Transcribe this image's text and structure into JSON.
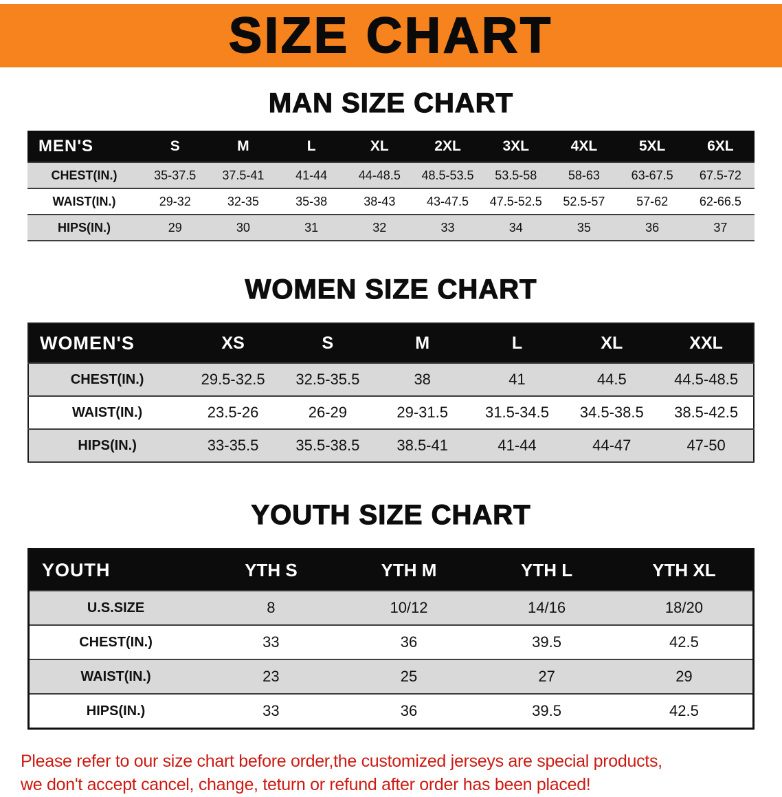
{
  "banner": {
    "title": "SIZE CHART"
  },
  "colors": {
    "banner_bg": "#F6831D",
    "table_header_bg": "#0C0C0C",
    "row_shade": "#D9D9D9",
    "notice_red": "#CD1A12"
  },
  "chart_data": [
    {
      "type": "table",
      "title": "MAN SIZE CHART",
      "columns": [
        "MEN'S",
        "S",
        "M",
        "L",
        "XL",
        "2XL",
        "3XL",
        "4XL",
        "5XL",
        "6XL"
      ],
      "rows": [
        [
          "CHEST(IN.)",
          "35-37.5",
          "37.5-41",
          "41-44",
          "44-48.5",
          "48.5-53.5",
          "53.5-58",
          "58-63",
          "63-67.5",
          "67.5-72"
        ],
        [
          "WAIST(IN.)",
          "29-32",
          "32-35",
          "35-38",
          "38-43",
          "43-47.5",
          "47.5-52.5",
          "52.5-57",
          "57-62",
          "62-66.5"
        ],
        [
          "HIPS(IN.)",
          "29",
          "30",
          "31",
          "32",
          "33",
          "34",
          "35",
          "36",
          "37"
        ]
      ]
    },
    {
      "type": "table",
      "title": "WOMEN SIZE CHART",
      "columns": [
        "WOMEN'S",
        "XS",
        "S",
        "M",
        "L",
        "XL",
        "XXL"
      ],
      "rows": [
        [
          "CHEST(IN.)",
          "29.5-32.5",
          "32.5-35.5",
          "38",
          "41",
          "44.5",
          "44.5-48.5"
        ],
        [
          "WAIST(IN.)",
          "23.5-26",
          "26-29",
          "29-31.5",
          "31.5-34.5",
          "34.5-38.5",
          "38.5-42.5"
        ],
        [
          "HIPS(IN.)",
          "33-35.5",
          "35.5-38.5",
          "38.5-41",
          "41-44",
          "44-47",
          "47-50"
        ]
      ]
    },
    {
      "type": "table",
      "title": "YOUTH SIZE CHART",
      "columns": [
        "YOUTH",
        "YTH S",
        "YTH M",
        "YTH L",
        "YTH XL"
      ],
      "rows": [
        [
          "U.S.SIZE",
          "8",
          "10/12",
          "14/16",
          "18/20"
        ],
        [
          "CHEST(IN.)",
          "33",
          "36",
          "39.5",
          "42.5"
        ],
        [
          "WAIST(IN.)",
          "23",
          "25",
          "27",
          "29"
        ],
        [
          "HIPS(IN.)",
          "33",
          "36",
          "39.5",
          "42.5"
        ]
      ]
    }
  ],
  "footer": {
    "line1": "Please refer to our size chart before order,the customized jerseys are special products,",
    "line2": "we don't accept cancel, change, teturn or refund after order has been placed!"
  }
}
